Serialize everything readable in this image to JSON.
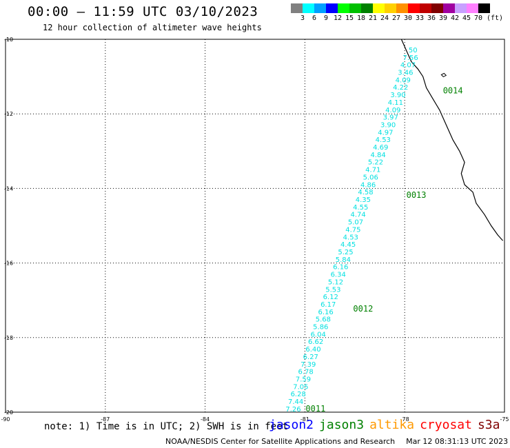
{
  "header": {
    "title": "00:00 – 11:59 UTC 03/10/2023",
    "subtitle": "12 hour collection of altimeter wave heights"
  },
  "color_scale": {
    "unit": "(ft)",
    "labels": [
      "3",
      "6",
      "9",
      "12",
      "15",
      "18",
      "21",
      "24",
      "27",
      "30",
      "33",
      "36",
      "39",
      "42",
      "45",
      "70"
    ],
    "colors": [
      "#808080",
      "#00ffff",
      "#00a0ff",
      "#0000ff",
      "#00ff00",
      "#00c000",
      "#008000",
      "#ffff00",
      "#ffd000",
      "#ff9000",
      "#ff0000",
      "#c00000",
      "#800000",
      "#a000a0",
      "#c8a0ff",
      "#ff80ff",
      "#000000"
    ]
  },
  "map": {
    "track_color": "#00e0e0",
    "time_color": "#008000",
    "lat_labels": [
      "-10",
      "-12",
      "-14",
      "-16",
      "-18",
      "-20"
    ],
    "lon_labels": [
      "-90",
      "-87",
      "-84",
      "-81",
      "-78",
      "-75"
    ]
  },
  "chart_data": {
    "type": "scatter",
    "lat_range": [
      -20,
      -10
    ],
    "lon_range": [
      -90,
      -75
    ],
    "grid": true,
    "track_swh_ft": [
      "7.26",
      "7.44",
      "6.28",
      "7.05",
      "7.59",
      "6.78",
      "7.39",
      "6.27",
      "6.40",
      "6.62",
      "6.04",
      "5.86",
      "5.68",
      "6.16",
      "6.17",
      "6.12",
      "5.53",
      "5.12",
      "6.34",
      "6.16",
      "5.84",
      "5.25",
      "4.45",
      "4.53",
      "4.75",
      "5.07",
      "4.74",
      "4.55",
      "4.35",
      "4.58",
      "4.86",
      "5.06",
      "4.71",
      "5.22",
      "4.84",
      "4.69",
      "4.53",
      "4.97",
      "3.90",
      "3.97",
      "4.09",
      "4.11",
      "3.90",
      "4.22",
      "4.09",
      "3.46",
      "4.07",
      "7.56",
      "50"
    ],
    "time_labels": [
      {
        "label": "0011",
        "lat": -19.98,
        "lon": -80.98
      },
      {
        "label": "0012",
        "lat": -17.3,
        "lon": -79.55
      },
      {
        "label": "0013",
        "lat": -14.25,
        "lon": -77.95
      },
      {
        "label": "0014",
        "lat": -11.45,
        "lon": -76.85
      }
    ]
  },
  "note": "note: 1) Time is in UTC; 2) SWH is in feet",
  "satellites": [
    {
      "name": "jason2",
      "color": "#0000ff"
    },
    {
      "name": "jason3",
      "color": "#008000"
    },
    {
      "name": "altika",
      "color": "#ff9900"
    },
    {
      "name": "cryosat",
      "color": "#ff0000"
    },
    {
      "name": "s3a",
      "color": "#800000"
    }
  ],
  "footer": {
    "source": "NOAA/NESDIS Center for Satellite Applications and Research",
    "timestamp": "Mar 12 08:31:13 UTC 2023"
  }
}
